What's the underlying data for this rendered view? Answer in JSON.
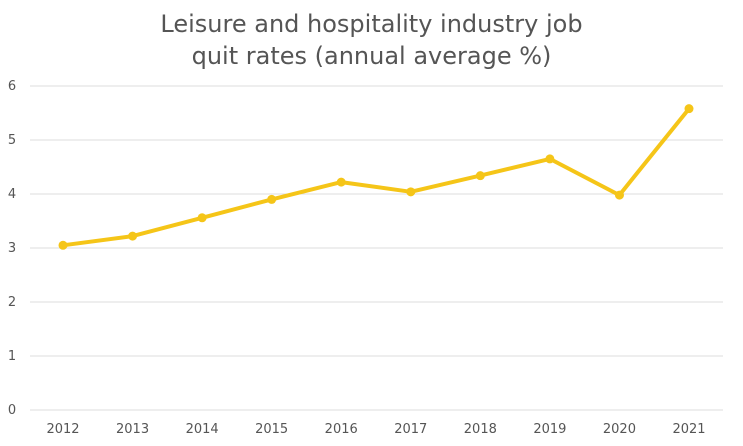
{
  "chart_data": {
    "type": "line",
    "title_lines": [
      "Leisure and hospitality industry job",
      "quit rates (annual average %)"
    ],
    "xlabel": "",
    "ylabel": "",
    "categories": [
      "2012",
      "2013",
      "2014",
      "2015",
      "2016",
      "2017",
      "2018",
      "2019",
      "2020",
      "2021"
    ],
    "series": [
      {
        "values": [
          3.05,
          3.22,
          3.56,
          3.9,
          4.22,
          4.04,
          4.34,
          4.65,
          3.98,
          5.58
        ]
      }
    ],
    "ylim": [
      0,
      6
    ],
    "yticks": [
      0,
      1,
      2,
      3,
      4,
      5,
      6
    ],
    "grid": true,
    "legend": "none",
    "colors": {
      "line": "#F5C518",
      "grid": "#dddddd",
      "text": "#555555"
    }
  }
}
